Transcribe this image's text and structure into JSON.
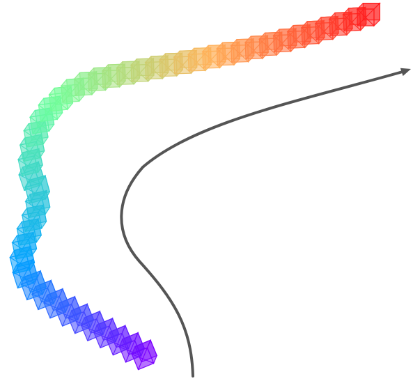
{
  "diagram": {
    "background": "#ffffff",
    "camera_trajectory": {
      "frame_count": 46,
      "color_start": "#7a00ff",
      "color_mid_1": "#00a2ff",
      "color_mid_2": "#6dff9a",
      "color_mid_3": "#ffb35a",
      "color_end": "#ff1f1f",
      "frame_fill_opacity": 0.55,
      "frame_stroke_opacity": 0.95
    },
    "direction_arrow": {
      "color": "#555555"
    }
  }
}
